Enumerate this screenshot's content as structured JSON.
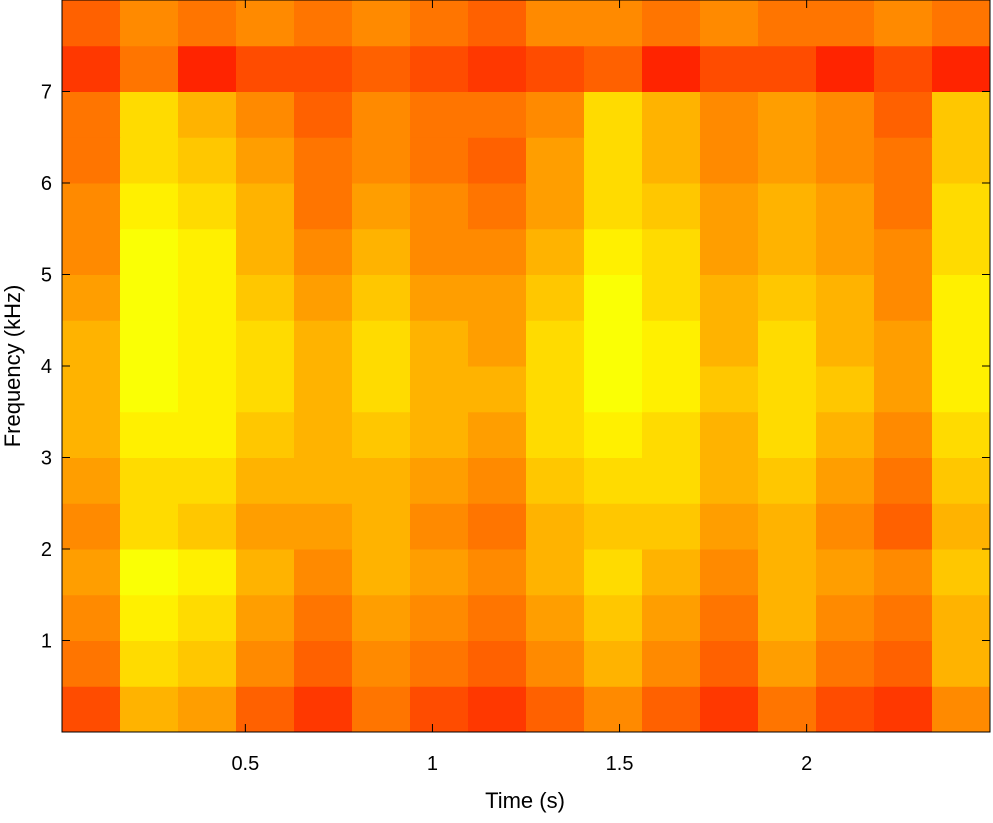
{
  "chart_data": {
    "type": "spectrogram",
    "colormap": "jet",
    "xlabel": "Time (s)",
    "ylabel": "Frequency (kHz)",
    "xlim": [
      0.01,
      2.49
    ],
    "ylim": [
      0,
      8
    ],
    "xticks": [
      0.5,
      1,
      1.5,
      2
    ],
    "yticks": [
      1,
      2,
      3,
      4,
      5,
      6,
      7
    ],
    "z": [
      [
        0.8,
        0.7,
        0.72,
        0.78,
        0.82,
        0.76,
        0.8,
        0.82,
        0.78,
        0.74,
        0.78,
        0.82,
        0.76,
        0.8,
        0.82,
        0.74
      ],
      [
        0.76,
        0.66,
        0.68,
        0.74,
        0.78,
        0.74,
        0.76,
        0.78,
        0.74,
        0.7,
        0.74,
        0.78,
        0.72,
        0.76,
        0.78,
        0.7
      ],
      [
        0.74,
        0.64,
        0.66,
        0.72,
        0.76,
        0.72,
        0.74,
        0.76,
        0.72,
        0.68,
        0.72,
        0.76,
        0.7,
        0.74,
        0.76,
        0.7
      ],
      [
        0.72,
        0.62,
        0.64,
        0.7,
        0.74,
        0.7,
        0.72,
        0.74,
        0.7,
        0.66,
        0.7,
        0.74,
        0.7,
        0.72,
        0.74,
        0.68
      ],
      [
        0.74,
        0.66,
        0.68,
        0.72,
        0.72,
        0.7,
        0.74,
        0.76,
        0.7,
        0.68,
        0.68,
        0.72,
        0.7,
        0.74,
        0.78,
        0.7
      ],
      [
        0.72,
        0.66,
        0.66,
        0.7,
        0.7,
        0.7,
        0.72,
        0.74,
        0.68,
        0.66,
        0.66,
        0.7,
        0.68,
        0.72,
        0.76,
        0.68
      ],
      [
        0.7,
        0.64,
        0.64,
        0.68,
        0.7,
        0.68,
        0.7,
        0.72,
        0.66,
        0.64,
        0.66,
        0.7,
        0.66,
        0.7,
        0.74,
        0.66
      ],
      [
        0.7,
        0.62,
        0.64,
        0.66,
        0.7,
        0.66,
        0.7,
        0.7,
        0.66,
        0.62,
        0.64,
        0.68,
        0.66,
        0.68,
        0.72,
        0.64
      ],
      [
        0.7,
        0.62,
        0.64,
        0.66,
        0.7,
        0.66,
        0.7,
        0.72,
        0.66,
        0.62,
        0.64,
        0.7,
        0.66,
        0.7,
        0.72,
        0.64
      ],
      [
        0.72,
        0.62,
        0.64,
        0.68,
        0.72,
        0.68,
        0.72,
        0.72,
        0.68,
        0.62,
        0.66,
        0.7,
        0.68,
        0.7,
        0.74,
        0.64
      ],
      [
        0.74,
        0.62,
        0.64,
        0.7,
        0.74,
        0.7,
        0.74,
        0.74,
        0.7,
        0.64,
        0.66,
        0.72,
        0.7,
        0.72,
        0.74,
        0.66
      ],
      [
        0.74,
        0.64,
        0.66,
        0.7,
        0.76,
        0.72,
        0.74,
        0.76,
        0.72,
        0.66,
        0.68,
        0.72,
        0.7,
        0.72,
        0.76,
        0.66
      ],
      [
        0.76,
        0.66,
        0.68,
        0.72,
        0.76,
        0.74,
        0.76,
        0.78,
        0.72,
        0.66,
        0.7,
        0.74,
        0.72,
        0.74,
        0.76,
        0.68
      ],
      [
        0.76,
        0.66,
        0.7,
        0.74,
        0.78,
        0.74,
        0.76,
        0.76,
        0.74,
        0.66,
        0.7,
        0.74,
        0.72,
        0.74,
        0.78,
        0.68
      ],
      [
        0.82,
        0.76,
        0.84,
        0.8,
        0.8,
        0.78,
        0.8,
        0.82,
        0.8,
        0.78,
        0.84,
        0.8,
        0.8,
        0.84,
        0.8,
        0.84
      ],
      [
        0.78,
        0.74,
        0.76,
        0.74,
        0.76,
        0.74,
        0.76,
        0.78,
        0.74,
        0.74,
        0.76,
        0.74,
        0.76,
        0.76,
        0.74,
        0.76
      ]
    ]
  }
}
